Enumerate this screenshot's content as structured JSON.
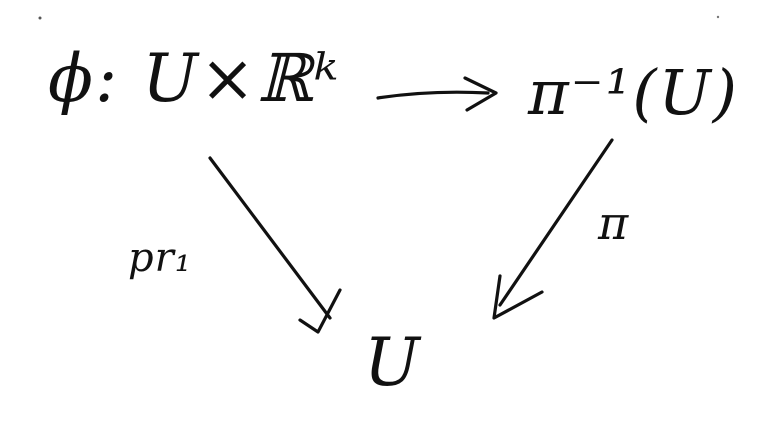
{
  "diagram": {
    "top_left": "ϕ: U×ℝᵏ",
    "top_right": "π⁻¹(U)",
    "bottom": "U",
    "left_arrow_label": "pr₁",
    "right_arrow_label": "π"
  }
}
